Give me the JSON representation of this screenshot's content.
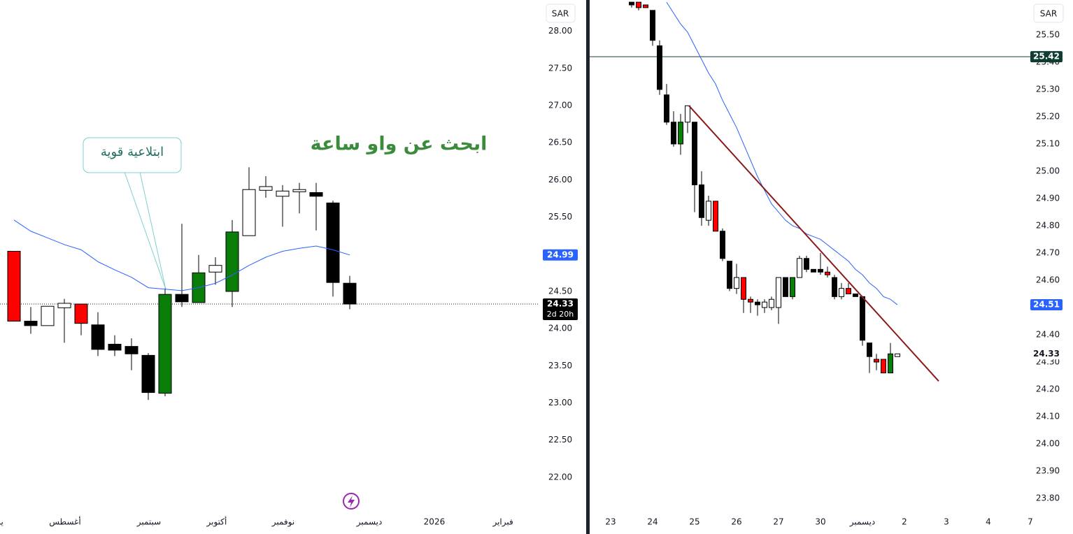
{
  "chart_data": [
    {
      "type": "candlestick",
      "currency": "SAR",
      "countdown": "2d 20h",
      "annotation": "ابحث عن واو ساعة",
      "callout": "ابتلاعية  قوية",
      "xlim": [
        -0.833,
        31.25
      ],
      "ylim": [
        21.5,
        28.42
      ],
      "xticks": [
        {
          "value": -0.83,
          "label": "يو"
        },
        {
          "value": 3.04,
          "label": "أغسطس"
        },
        {
          "value": 8.04,
          "label": "سبتمبر"
        },
        {
          "value": 12.08,
          "label": "أكتوبر"
        },
        {
          "value": 16.04,
          "label": "نوفمبر"
        },
        {
          "value": 21.17,
          "label": "ديسمبر"
        },
        {
          "value": 25.04,
          "label": "2026"
        },
        {
          "value": 29.13,
          "label": "فبراير"
        }
      ],
      "yticks": [
        {
          "value": 22,
          "label": "22.00"
        },
        {
          "value": 22.5,
          "label": "22.50"
        },
        {
          "value": 23,
          "label": "23.00"
        },
        {
          "value": 23.5,
          "label": "23.50"
        },
        {
          "value": 24,
          "label": "24.00"
        },
        {
          "value": 24.5,
          "label": "24.50"
        },
        {
          "value": 25,
          "label": "25.00"
        },
        {
          "value": 25.5,
          "label": "25.50"
        },
        {
          "value": 26,
          "label": "26.00"
        },
        {
          "value": 26.5,
          "label": "26.50"
        },
        {
          "value": 27,
          "label": "27.00"
        },
        {
          "value": 27.5,
          "label": "27.50"
        },
        {
          "value": 28,
          "label": "28.00"
        }
      ],
      "open": [
        25.04,
        24.1,
        24.04,
        24.28,
        24.33,
        24.05,
        23.79,
        23.76,
        23.64,
        23.13,
        24.46,
        24.35,
        24.76,
        24.5,
        25.25,
        25.86,
        25.78,
        25.84,
        25.83,
        25.69,
        24.61
      ],
      "high": [
        25.04,
        24.29,
        24.3,
        24.4,
        24.33,
        24.22,
        23.91,
        23.87,
        23.67,
        24.54,
        25.41,
        24.99,
        24.96,
        25.46,
        26.17,
        26.05,
        25.93,
        25.96,
        25.96,
        25.72,
        24.71
      ],
      "low": [
        24.1,
        23.93,
        24.04,
        23.81,
        23.91,
        23.63,
        23.63,
        23.44,
        23.04,
        23.09,
        24.29,
        24.35,
        24.59,
        24.29,
        25.25,
        25.76,
        25.37,
        25.55,
        25.32,
        24.43,
        24.26
      ],
      "close": [
        24.1,
        24.04,
        24.3,
        24.34,
        24.07,
        23.72,
        23.71,
        23.66,
        23.14,
        24.46,
        24.36,
        24.75,
        24.85,
        25.3,
        25.87,
        25.91,
        25.85,
        25.87,
        25.78,
        24.62,
        24.33
      ],
      "colors": [
        "#ff0000",
        "#000000",
        "#ffffff",
        "#ffffff",
        "#ff0000",
        "#000000",
        "#000000",
        "#000000",
        "#000000",
        "#0a7d0a",
        "#000000",
        "#0a7d0a",
        "#ffffff",
        "#0a7d0a",
        "#ffffff",
        "#ffffff",
        "#ffffff",
        "#ffffff",
        "#000000",
        "#000000",
        "#000000"
      ],
      "ma": {
        "color": "#2962ff",
        "values": [
          25.46,
          25.31,
          25.22,
          25.13,
          25.06,
          24.9,
          24.79,
          24.69,
          24.55,
          24.53,
          24.51,
          24.55,
          24.61,
          24.72,
          24.85,
          24.96,
          25.04,
          25.08,
          25.11,
          25.06,
          24.99
        ]
      },
      "last_price_line": 24.33,
      "price_tags": [
        {
          "value": 24.99,
          "color": "#2962ff"
        },
        {
          "value": 24.33,
          "color": "#000000"
        }
      ]
    },
    {
      "type": "candlestick",
      "currency": "SAR",
      "xlim": [
        -6,
        57
      ],
      "ylim": [
        23.741,
        25.628
      ],
      "xticks": [
        {
          "value": -3,
          "label": "23"
        },
        {
          "value": 3,
          "label": "24"
        },
        {
          "value": 9,
          "label": "25"
        },
        {
          "value": 15,
          "label": "26"
        },
        {
          "value": 21,
          "label": "27"
        },
        {
          "value": 27,
          "label": "30"
        },
        {
          "value": 33,
          "label": "ديسمبر"
        },
        {
          "value": 39,
          "label": "2"
        },
        {
          "value": 45,
          "label": "3"
        },
        {
          "value": 51,
          "label": "4"
        },
        {
          "value": 57,
          "label": "7"
        }
      ],
      "yticks": [
        {
          "value": 23.8,
          "label": "23.80"
        },
        {
          "value": 23.9,
          "label": "23.90"
        },
        {
          "value": 24,
          "label": "24.00"
        },
        {
          "value": 24.1,
          "label": "24.10"
        },
        {
          "value": 24.2,
          "label": "24.20"
        },
        {
          "value": 24.3,
          "label": "24.30"
        },
        {
          "value": 24.4,
          "label": "24.40"
        },
        {
          "value": 24.5,
          "label": "24.50"
        },
        {
          "value": 24.6,
          "label": "24.60"
        },
        {
          "value": 24.7,
          "label": "24.70"
        },
        {
          "value": 24.8,
          "label": "24.80"
        },
        {
          "value": 24.9,
          "label": "24.90"
        },
        {
          "value": 25,
          "label": "25.00"
        },
        {
          "value": 25.1,
          "label": "25.10"
        },
        {
          "value": 25.2,
          "label": "25.20"
        },
        {
          "value": 25.3,
          "label": "25.30"
        },
        {
          "value": 25.4,
          "label": "25.40"
        },
        {
          "value": 25.5,
          "label": "25.50"
        }
      ],
      "open": [
        25.62,
        25.62,
        25.61,
        25.59,
        25.46,
        25.28,
        25.18,
        25.1,
        25.18,
        25.18,
        24.95,
        24.82,
        24.89,
        24.78,
        24.67,
        24.57,
        24.61,
        24.53,
        24.52,
        24.5,
        24.5,
        24.5,
        24.61,
        24.54,
        24.61,
        24.68,
        24.64,
        24.64,
        24.63,
        24.61,
        24.54,
        24.57,
        24.55,
        24.54,
        24.37,
        24.31,
        24.31,
        24.26,
        24.32
      ],
      "high": [
        25.62,
        25.62,
        25.61,
        25.59,
        25.48,
        25.32,
        25.22,
        25.21,
        25.24,
        25.18,
        25.0,
        24.91,
        24.89,
        24.79,
        24.67,
        24.66,
        24.61,
        24.54,
        24.53,
        24.53,
        24.54,
        24.61,
        24.61,
        24.61,
        24.69,
        24.69,
        24.64,
        24.7,
        24.65,
        24.62,
        24.59,
        24.59,
        24.55,
        24.54,
        24.37,
        24.33,
        24.31,
        24.37,
        24.33
      ],
      "low": [
        25.6,
        25.59,
        25.6,
        25.46,
        25.28,
        25.17,
        25.09,
        25.06,
        25.14,
        24.85,
        24.8,
        24.8,
        24.78,
        24.67,
        24.56,
        24.55,
        24.48,
        24.48,
        24.47,
        24.48,
        24.49,
        24.44,
        24.54,
        24.53,
        24.61,
        24.63,
        24.63,
        24.62,
        24.61,
        24.53,
        24.53,
        24.55,
        24.54,
        24.36,
        24.26,
        24.27,
        24.26,
        24.26,
        24.32
      ],
      "close": [
        25.61,
        25.6,
        25.6,
        25.48,
        25.3,
        25.18,
        25.1,
        25.18,
        25.24,
        24.95,
        24.83,
        24.89,
        24.78,
        24.68,
        24.57,
        24.61,
        24.53,
        24.52,
        24.51,
        24.52,
        24.53,
        24.61,
        24.54,
        24.61,
        24.68,
        24.64,
        24.63,
        24.63,
        24.62,
        24.54,
        24.57,
        24.55,
        24.54,
        24.38,
        24.32,
        24.3,
        24.26,
        24.33,
        24.33
      ],
      "colors": [
        "#000000",
        "#ff0000",
        "#ff0000",
        "#000000",
        "#000000",
        "#000000",
        "#000000",
        "#0a7d0a",
        "#ffffff",
        "#000000",
        "#000000",
        "#ffffff",
        "#ff0000",
        "#000000",
        "#000000",
        "#ffffff",
        "#ff0000",
        "#ff0000",
        "#000000",
        "#ffffff",
        "#ffffff",
        "#ffffff",
        "#000000",
        "#0a7d0a",
        "#ffffff",
        "#000000",
        "#000000",
        "#000000",
        "#ff0000",
        "#000000",
        "#ffffff",
        "#ff0000",
        "#000000",
        "#000000",
        "#000000",
        "#ff0000",
        "#ff0000",
        "#0a7d0a",
        "#ffffff"
      ],
      "ma": {
        "color": "#2962ff",
        "values": [
          null,
          null,
          null,
          null,
          null,
          25.62,
          25.58,
          25.54,
          25.51,
          25.46,
          25.41,
          25.36,
          25.32,
          25.26,
          25.21,
          25.16,
          25.1,
          25.04,
          24.98,
          24.93,
          24.88,
          24.85,
          24.82,
          24.8,
          24.79,
          24.77,
          24.76,
          24.75,
          24.73,
          24.71,
          24.69,
          24.67,
          24.64,
          24.62,
          24.59,
          24.57,
          24.54,
          24.53,
          24.51
        ]
      },
      "trendline": {
        "color": "#8b1a1a",
        "x": [
          8.2,
          43.9
        ],
        "y": [
          25.24,
          24.23
        ]
      },
      "hline": {
        "value": 25.42,
        "color": "#1d3b36"
      },
      "price_tags": [
        {
          "value": 25.42,
          "color": "#0f3d33"
        },
        {
          "value": 24.51,
          "color": "#2962ff"
        },
        {
          "value": 24.33,
          "color": "#ffffff"
        }
      ]
    }
  ]
}
